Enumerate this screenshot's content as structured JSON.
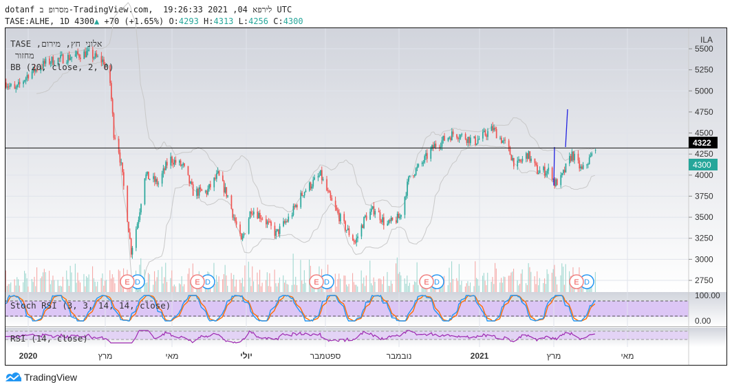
{
  "header": {
    "line1": "dotanf מסרופ ב-TradingView.com,  לירפא 04, 2021 19:26:33 UTC",
    "symbol": "TASE:ALHE, 1D 4300",
    "change": "+70 (+1.65%)",
    "o_label": "O:",
    "o": "4293",
    "h_label": "H:",
    "h": "4313",
    "l_label": "L:",
    "l": "4256",
    "c_label": "C:",
    "c": "4300"
  },
  "legend": {
    "name": "אלוני חץ, מירום, TASE",
    "volume": "מחזור",
    "bb": "BB (20, close, 2, 0)",
    "stoch": "Stoch RSI (3, 3, 14, 14, close)",
    "rsi": "RSI (14, close)"
  },
  "price_axis": {
    "currency": "ILA",
    "ticks": [
      "5500",
      "5250",
      "5000",
      "4750",
      "4500",
      "4250",
      "4000",
      "3750",
      "3500",
      "3250",
      "3000",
      "2750"
    ],
    "last_high": "4322",
    "last_price": "4300"
  },
  "stoch_axis": {
    "ticks": [
      "100.00",
      "0.00"
    ]
  },
  "time_axis": [
    "2020",
    "מרץ",
    "מאי",
    "יולי",
    "ספטמבר",
    "נובמבר",
    "2021",
    "מרץ",
    "מאי"
  ],
  "events": [
    {
      "e": "E",
      "d": "D"
    },
    {
      "e": "E",
      "d": "D"
    },
    {
      "e": "E",
      "d": "D"
    },
    {
      "e": "E",
      "d": "D"
    },
    {
      "e": "E",
      "d": "D"
    }
  ],
  "footer": {
    "brand": "TradingView"
  },
  "colors": {
    "up": "#26a69a",
    "down": "#ef5350",
    "stoch_k": "#2196f3",
    "stoch_d": "#ff6d00",
    "rsi": "#9c27b0",
    "bb": "#c8c8c8",
    "accent": "#2196f3"
  },
  "chart_data": {
    "type": "candlestick",
    "symbol": "TASE:ALHE",
    "interval": "1D",
    "ylim": [
      2650,
      5600
    ],
    "close_path": [
      [
        0,
        5100
      ],
      [
        7,
        5000
      ],
      [
        18,
        5200
      ],
      [
        34,
        5350
      ],
      [
        51,
        5400
      ],
      [
        65,
        5450
      ],
      [
        79,
        5350
      ],
      [
        84,
        5100
      ],
      [
        87,
        4500
      ],
      [
        90,
        4400
      ],
      [
        93,
        4100
      ],
      [
        98,
        3500
      ],
      [
        101,
        3100
      ],
      [
        107,
        3500
      ],
      [
        112,
        4000
      ],
      [
        123,
        3900
      ],
      [
        132,
        4200
      ],
      [
        143,
        4100
      ],
      [
        151,
        3800
      ],
      [
        162,
        3800
      ],
      [
        171,
        4000
      ],
      [
        179,
        3750
      ],
      [
        190,
        3200
      ],
      [
        198,
        3600
      ],
      [
        207,
        3500
      ],
      [
        218,
        3300
      ],
      [
        229,
        3500
      ],
      [
        240,
        3800
      ],
      [
        254,
        4000
      ],
      [
        262,
        3700
      ],
      [
        273,
        3400
      ],
      [
        282,
        3200
      ],
      [
        290,
        3500
      ],
      [
        298,
        3600
      ],
      [
        307,
        3400
      ],
      [
        318,
        3500
      ],
      [
        326,
        4000
      ],
      [
        334,
        4100
      ],
      [
        346,
        4350
      ],
      [
        362,
        4500
      ],
      [
        379,
        4400
      ],
      [
        393,
        4550
      ],
      [
        404,
        4350
      ],
      [
        412,
        4100
      ],
      [
        421,
        4250
      ],
      [
        429,
        4050
      ],
      [
        440,
        4050
      ],
      [
        443,
        3900
      ],
      [
        448,
        3950
      ],
      [
        457,
        4250
      ],
      [
        465,
        4050
      ],
      [
        476,
        4300
      ]
    ],
    "last": {
      "open": 4293,
      "high": 4313,
      "low": 4256,
      "close": 4300,
      "change": 70,
      "change_pct": 1.65
    }
  }
}
